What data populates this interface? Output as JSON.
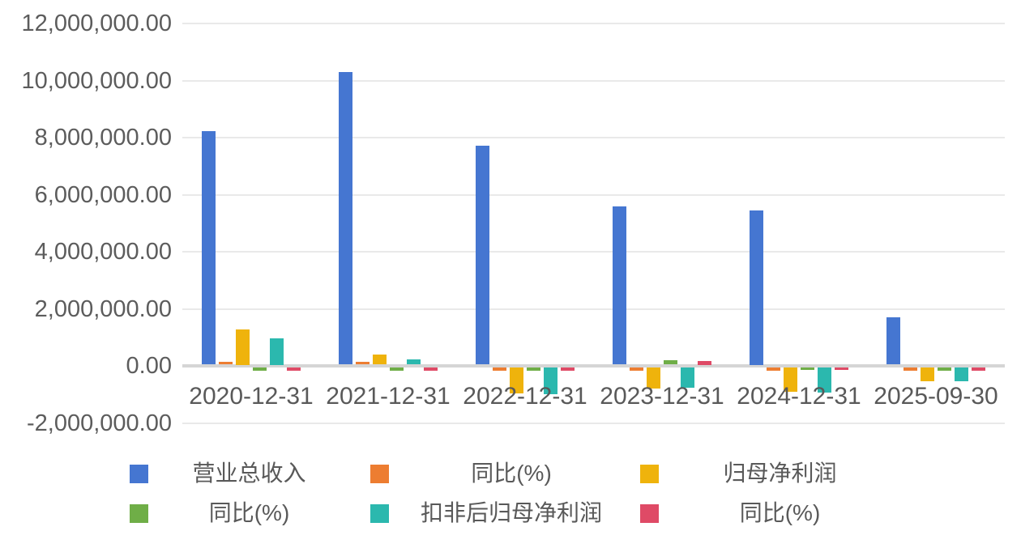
{
  "chart_data": {
    "type": "bar",
    "title": "",
    "xlabel": "",
    "ylabel": "",
    "grid": true,
    "legend_position": "bottom",
    "legend_rows": 2,
    "ylim": [
      -2000000,
      12000000
    ],
    "categories": [
      "2020-12-31",
      "2021-12-31",
      "2022-12-31",
      "2023-12-31",
      "2024-12-31",
      "2025-09-30"
    ],
    "y_ticks": [
      {
        "label": "12,000,000.00",
        "value": 12000000
      },
      {
        "label": "10,000,000.00",
        "value": 10000000
      },
      {
        "label": "8,000,000.00",
        "value": 8000000
      },
      {
        "label": "6,000,000.00",
        "value": 6000000
      },
      {
        "label": "4,000,000.00",
        "value": 4000000
      },
      {
        "label": "2,000,000.00",
        "value": 2000000
      },
      {
        "label": "0.00",
        "value": 0
      },
      {
        "label": "-2,000,000.00",
        "value": -2000000
      }
    ],
    "series": [
      {
        "name": "营业总收入",
        "color": "#4576d1",
        "values": [
          8170000,
          10230000,
          7650000,
          5530000,
          5410000,
          1650000
        ]
      },
      {
        "name": "同比(%)",
        "color": "#ed7d31",
        "values": [
          90000,
          90000,
          -110000,
          -110000,
          -110000,
          -110000
        ]
      },
      {
        "name": "归母净利润",
        "color": "#efb30c",
        "values": [
          1240000,
          350000,
          -920000,
          -730000,
          -850000,
          -470000
        ]
      },
      {
        "name": "同比(%)",
        "color": "#6fae47",
        "values": [
          -110000,
          -110000,
          -110000,
          150000,
          -90000,
          -110000
        ]
      },
      {
        "name": "扣非后归母净利润",
        "color": "#2bb8ae",
        "values": [
          930000,
          180000,
          -940000,
          -720000,
          -870000,
          -490000
        ]
      },
      {
        "name": "同比(%)",
        "color": "#df4a66",
        "values": [
          -110000,
          -110000,
          -110000,
          130000,
          -90000,
          -110000
        ]
      }
    ]
  },
  "colors": {
    "background": "#ffffff",
    "text": "#595959",
    "gridline": "#e9e9e9",
    "zero_line": "#d5d5d5"
  }
}
